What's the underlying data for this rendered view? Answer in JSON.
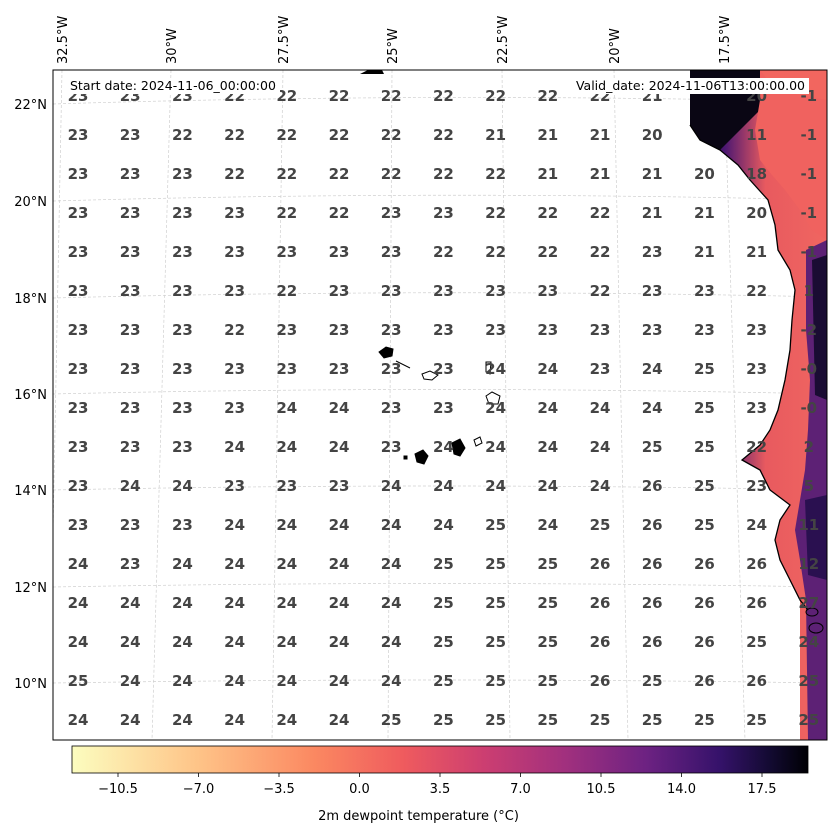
{
  "header": {
    "start_date": "Start date: 2024-11-06_00:00:00",
    "valid_date": "Valid_date: 2024-11-06T13:00:00.00"
  },
  "map": {
    "lon_labels": [
      "32.5°W",
      "30°W",
      "27.5°W",
      "25°W",
      "22.5°W",
      "20°W",
      "17.5°W"
    ],
    "lat_labels": [
      "22°N",
      "20°N",
      "18°N",
      "16°N",
      "14°N",
      "12°N",
      "10°N"
    ],
    "grid_values": [
      [
        "23",
        "23",
        "23",
        "22",
        "22",
        "22",
        "22",
        "22",
        "22",
        "22",
        "22",
        "21",
        "20",
        "-1"
      ],
      [
        "23",
        "23",
        "22",
        "22",
        "22",
        "22",
        "22",
        "22",
        "21",
        "21",
        "21",
        "20",
        "11",
        "-1"
      ],
      [
        "23",
        "23",
        "23",
        "22",
        "22",
        "22",
        "22",
        "22",
        "22",
        "21",
        "21",
        "21",
        "20",
        "18",
        "-1"
      ],
      [
        "23",
        "23",
        "23",
        "23",
        "22",
        "22",
        "23",
        "23",
        "22",
        "22",
        "22",
        "21",
        "21",
        "20",
        "-1"
      ],
      [
        "23",
        "23",
        "23",
        "23",
        "23",
        "23",
        "23",
        "22",
        "22",
        "22",
        "22",
        "23",
        "21",
        "21",
        "-1"
      ],
      [
        "23",
        "23",
        "23",
        "23",
        "22",
        "23",
        "23",
        "23",
        "23",
        "23",
        "22",
        "23",
        "23",
        "22",
        "1"
      ],
      [
        "23",
        "23",
        "23",
        "22",
        "23",
        "23",
        "23",
        "23",
        "23",
        "23",
        "23",
        "23",
        "23",
        "23",
        "-2"
      ],
      [
        "23",
        "23",
        "23",
        "23",
        "23",
        "23",
        "23",
        "23",
        "24",
        "24",
        "23",
        "24",
        "25",
        "23",
        "-0"
      ],
      [
        "23",
        "23",
        "23",
        "23",
        "24",
        "24",
        "23",
        "23",
        "24",
        "24",
        "24",
        "24",
        "25",
        "23",
        "-0"
      ],
      [
        "23",
        "23",
        "23",
        "24",
        "24",
        "24",
        "23",
        "24",
        "24",
        "24",
        "24",
        "25",
        "25",
        "22",
        "2"
      ],
      [
        "23",
        "24",
        "24",
        "23",
        "23",
        "23",
        "24",
        "24",
        "24",
        "24",
        "24",
        "26",
        "25",
        "23",
        "5"
      ],
      [
        "23",
        "23",
        "23",
        "24",
        "24",
        "24",
        "24",
        "24",
        "25",
        "24",
        "25",
        "26",
        "25",
        "24",
        "11"
      ],
      [
        "24",
        "23",
        "24",
        "24",
        "24",
        "24",
        "24",
        "25",
        "25",
        "25",
        "26",
        "26",
        "26",
        "26",
        "12"
      ],
      [
        "24",
        "24",
        "24",
        "24",
        "24",
        "24",
        "24",
        "25",
        "25",
        "25",
        "26",
        "26",
        "26",
        "26",
        "27"
      ],
      [
        "24",
        "24",
        "24",
        "24",
        "24",
        "24",
        "24",
        "25",
        "25",
        "25",
        "26",
        "26",
        "26",
        "25",
        "24"
      ],
      [
        "25",
        "24",
        "24",
        "24",
        "24",
        "24",
        "24",
        "25",
        "25",
        "25",
        "26",
        "25",
        "26",
        "26",
        "25"
      ],
      [
        "24",
        "24",
        "24",
        "24",
        "24",
        "24",
        "25",
        "25",
        "25",
        "25",
        "25",
        "25",
        "25",
        "25",
        "25"
      ]
    ]
  },
  "colorbar": {
    "tick_labels": [
      "−10.5",
      "−7.0",
      "−3.5",
      "0.0",
      "3.5",
      "7.0",
      "10.5",
      "14.0",
      "17.5"
    ],
    "title": "2m dewpoint temperature (°C)",
    "min": -12.5,
    "max": 19.5,
    "colors": {
      "low": "#fcfdbf",
      "mid1": "#feb078",
      "mid2": "#f1605d",
      "mid3": "#b73779",
      "mid4": "#721f81",
      "mid5": "#2c115f",
      "high": "#000004"
    }
  }
}
